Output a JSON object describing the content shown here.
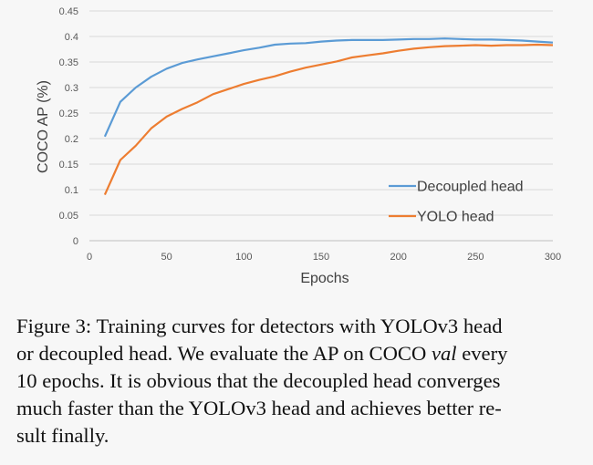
{
  "chart_data": {
    "type": "line",
    "xlabel": "Epochs",
    "ylabel": "COCO AP (%)",
    "xlim": [
      0,
      300
    ],
    "ylim": [
      0,
      0.45
    ],
    "x_ticks": [
      "0",
      "50",
      "100",
      "150",
      "200",
      "250",
      "300"
    ],
    "y_ticks": [
      "0",
      "0.05",
      "0.1",
      "0.15",
      "0.2",
      "0.25",
      "0.3",
      "0.35",
      "0.4",
      "0.45"
    ],
    "grid": "horizontal",
    "legend_position": "right",
    "series": [
      {
        "name": "Decoupled head",
        "color": "#5b9bd5",
        "x": [
          10,
          20,
          30,
          40,
          50,
          60,
          70,
          80,
          90,
          100,
          110,
          120,
          130,
          140,
          150,
          160,
          170,
          180,
          190,
          200,
          210,
          220,
          230,
          240,
          250,
          260,
          270,
          280,
          290,
          300
        ],
        "y": [
          0.204,
          0.272,
          0.3,
          0.321,
          0.337,
          0.348,
          0.355,
          0.361,
          0.367,
          0.373,
          0.378,
          0.384,
          0.386,
          0.387,
          0.39,
          0.392,
          0.393,
          0.393,
          0.393,
          0.394,
          0.395,
          0.395,
          0.396,
          0.395,
          0.394,
          0.394,
          0.393,
          0.392,
          0.39,
          0.388
        ]
      },
      {
        "name": "YOLO head",
        "color": "#ed7d31",
        "x": [
          10,
          20,
          30,
          40,
          50,
          60,
          70,
          80,
          90,
          100,
          110,
          120,
          130,
          140,
          150,
          160,
          170,
          180,
          190,
          200,
          210,
          220,
          230,
          240,
          250,
          260,
          270,
          280,
          290,
          300
        ],
        "y": [
          0.09,
          0.158,
          0.186,
          0.22,
          0.243,
          0.258,
          0.271,
          0.287,
          0.297,
          0.307,
          0.315,
          0.322,
          0.331,
          0.339,
          0.345,
          0.351,
          0.359,
          0.363,
          0.367,
          0.372,
          0.376,
          0.379,
          0.381,
          0.382,
          0.383,
          0.382,
          0.383,
          0.383,
          0.384,
          0.383
        ]
      }
    ]
  },
  "caption": {
    "lines": [
      [
        "Figure 3: Training curves for detectors with YOLOv3 head"
      ],
      [
        "or decoupled head. We evaluate the AP on COCO ",
        {
          "italic": "val"
        },
        " every"
      ],
      [
        "10 epochs. It is obvious that the decoupled head converges"
      ],
      [
        "much faster than the YOLOv3 head and achieves better re-"
      ],
      [
        "sult finally."
      ]
    ]
  }
}
